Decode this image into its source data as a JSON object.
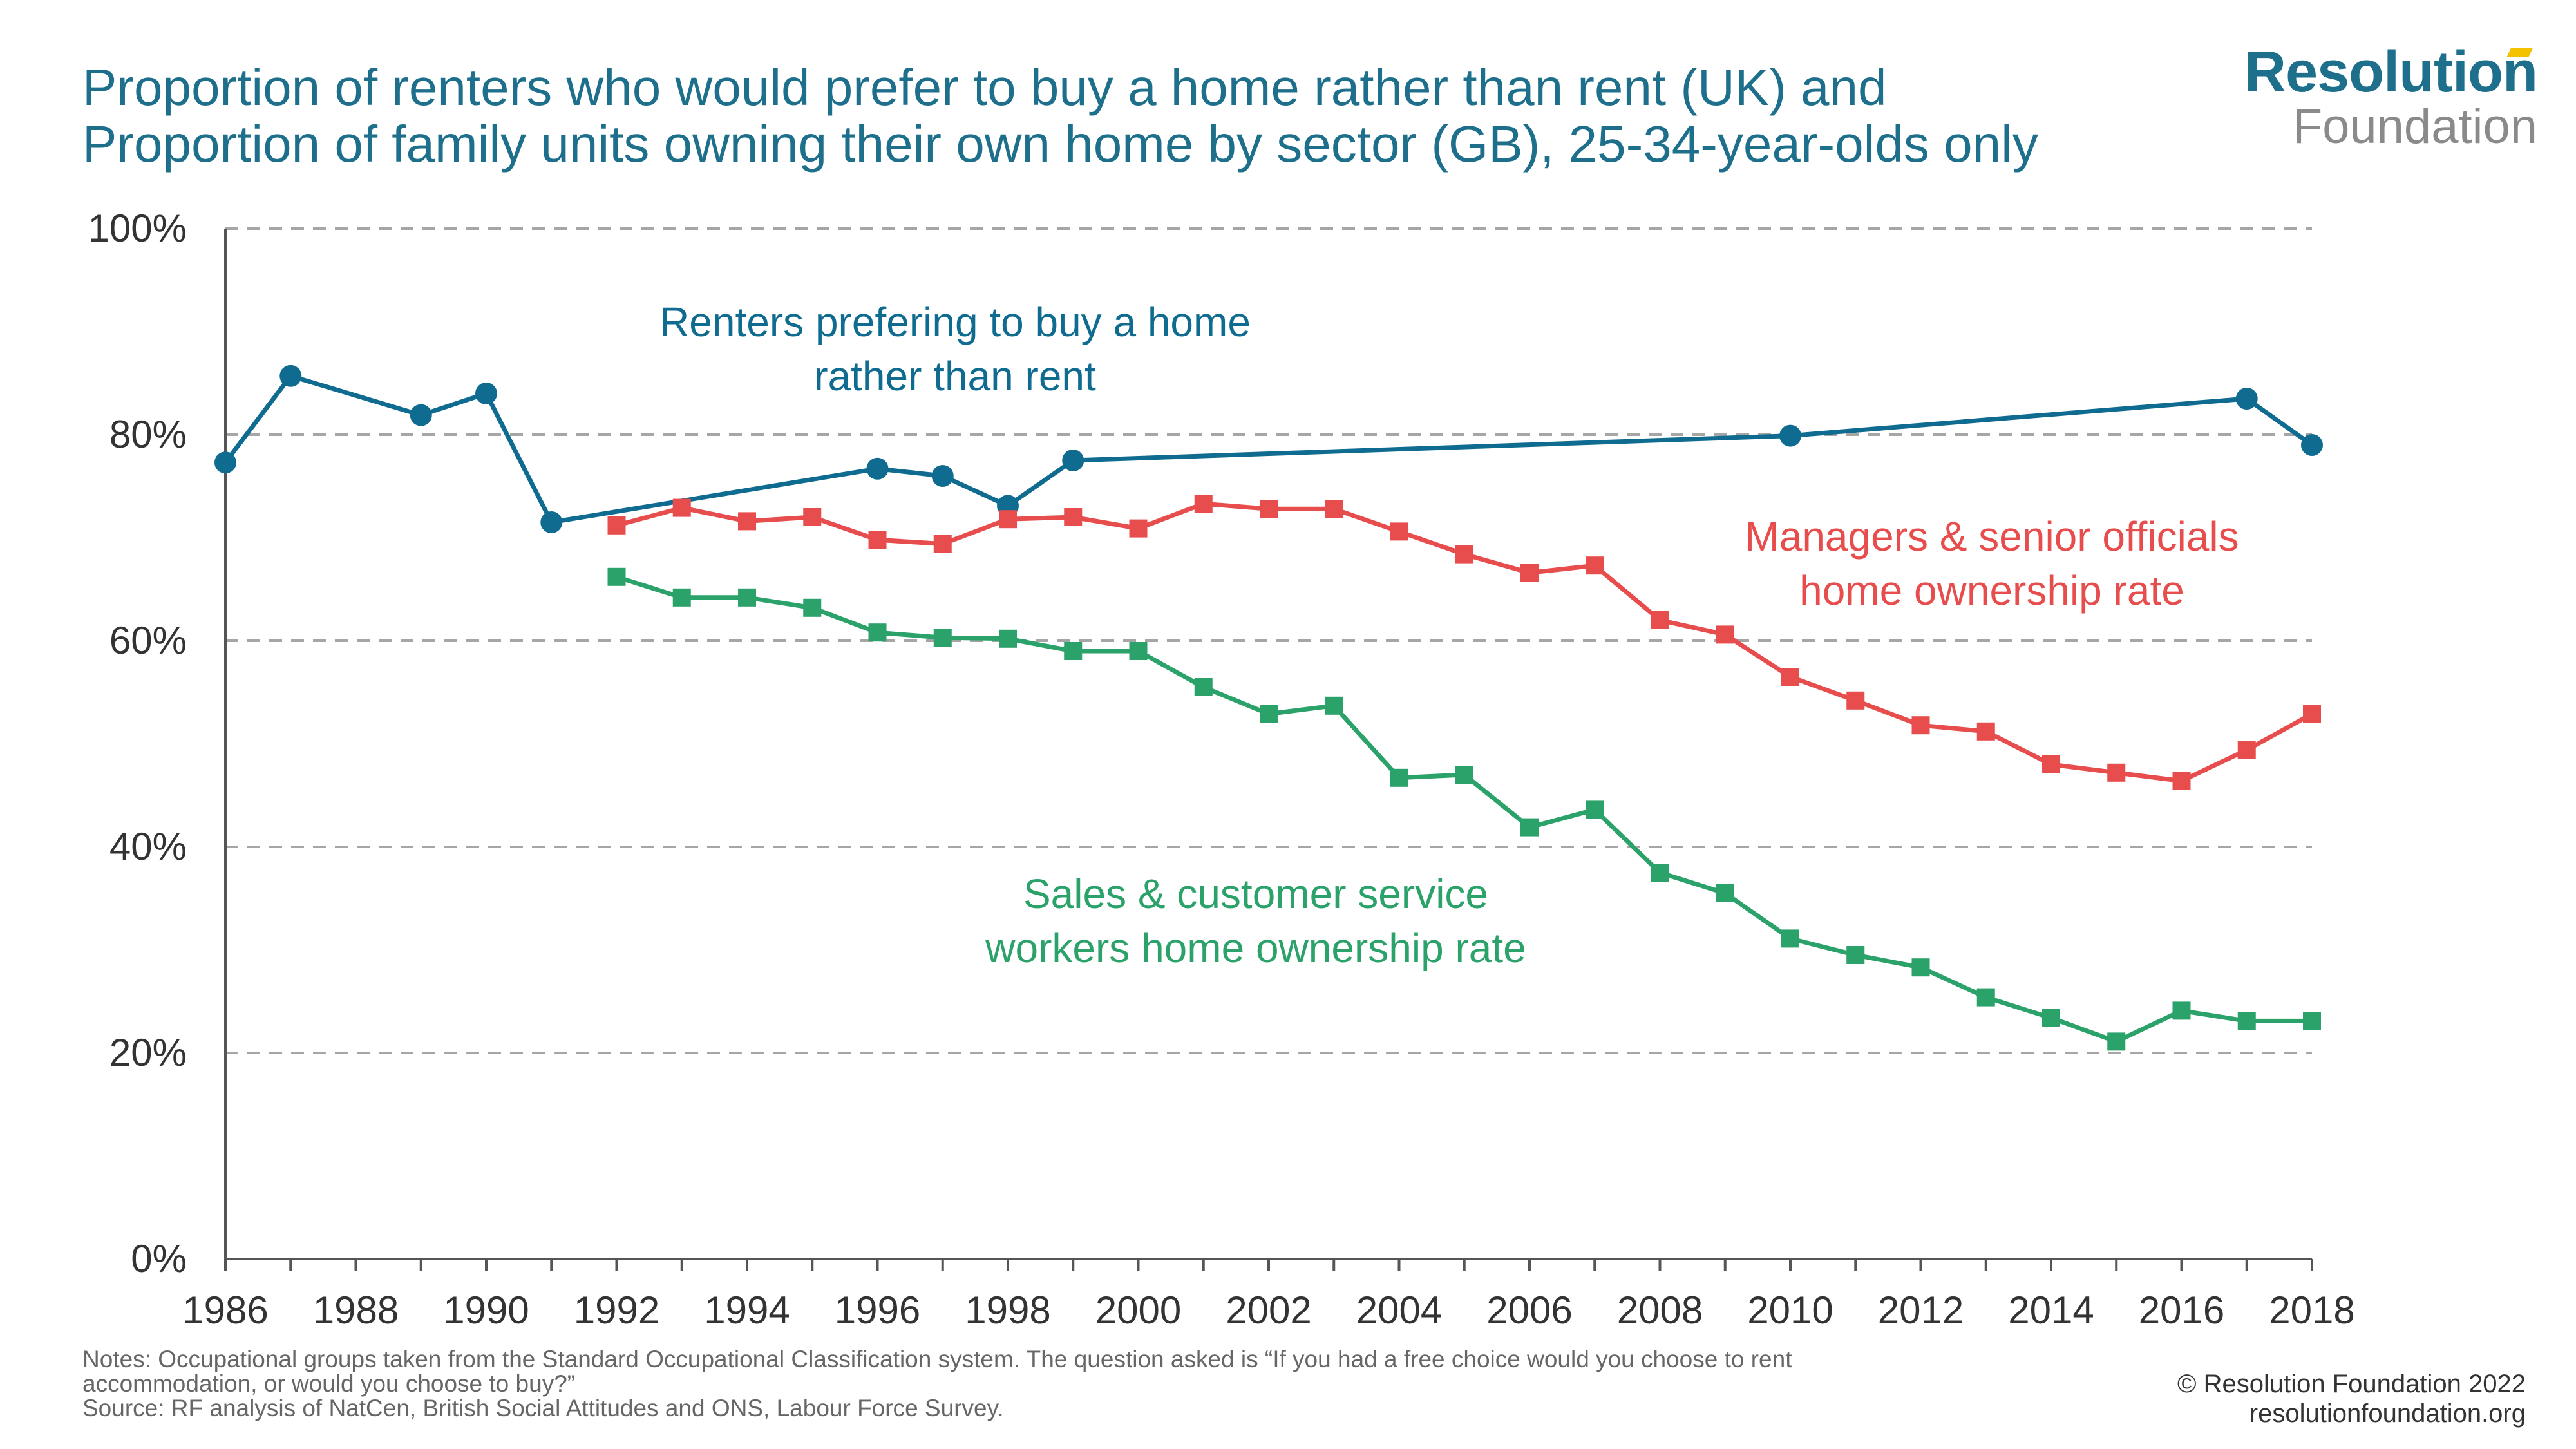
{
  "header": {
    "title_line1": "Proportion of renters who would prefer to buy a home rather than rent (UK) and",
    "title_line2": "Proportion of family units owning their own home by sector (GB), 25-34-year-olds only"
  },
  "logo": {
    "main": "Resolution",
    "sub": "Foundation"
  },
  "footer": {
    "notes_line1": "Notes: Occupational groups taken from the Standard Occupational Classification system. The question asked is “If you had a free choice would you choose to rent",
    "notes_line2": "accommodation, or would you choose to buy?”",
    "source": "Source:  RF analysis of NatCen, British Social Attitudes and ONS, Labour Force Survey.",
    "copyright": "© Resolution Foundation 2022",
    "website": "resolutionfoundation.org"
  },
  "chart_data": {
    "type": "line",
    "title": "",
    "xlabel": "",
    "ylabel": "",
    "xlim": [
      1986,
      2018
    ],
    "ylim": [
      0,
      100
    ],
    "x_ticks": [
      "1986",
      "1988",
      "1990",
      "1992",
      "1994",
      "1996",
      "1998",
      "2000",
      "2002",
      "2004",
      "2006",
      "2008",
      "2010",
      "2012",
      "2014",
      "2016",
      "2018"
    ],
    "y_ticks": [
      {
        "value": 0,
        "label": "0%"
      },
      {
        "value": 20,
        "label": "20%"
      },
      {
        "value": 40,
        "label": "40%"
      },
      {
        "value": 60,
        "label": "60%"
      },
      {
        "value": 80,
        "label": "80%"
      },
      {
        "value": 100,
        "label": "100%"
      }
    ],
    "grid": "horizontal dashed",
    "series": [
      {
        "name": "Renters prefering to buy a home rather than rent",
        "color": "#0f6b8f",
        "marker": "circle",
        "label_lines": [
          "Renters prefering to buy a home",
          "rather than rent"
        ],
        "x": [
          1986,
          1987,
          1989,
          1990,
          1991,
          1996,
          1997,
          1998,
          1999,
          2010,
          2017,
          2018
        ],
        "values": [
          77.3,
          85.7,
          81.9,
          84.0,
          71.5,
          76.7,
          76.0,
          73.1,
          77.5,
          79.9,
          83.5,
          79.0
        ]
      },
      {
        "name": "Managers & senior officials home ownership rate",
        "color": "#e84d4d",
        "marker": "square",
        "label_lines": [
          "Managers & senior officials",
          "home ownership rate"
        ],
        "x": [
          1992,
          1993,
          1994,
          1995,
          1996,
          1997,
          1998,
          1999,
          2000,
          2001,
          2002,
          2003,
          2004,
          2005,
          2006,
          2007,
          2008,
          2009,
          2010,
          2011,
          2012,
          2013,
          2014,
          2015,
          2016,
          2017,
          2018
        ],
        "values": [
          71.2,
          72.9,
          71.6,
          72.0,
          69.8,
          69.4,
          71.8,
          72.0,
          70.9,
          73.3,
          72.8,
          72.8,
          70.6,
          68.4,
          66.6,
          67.3,
          62.0,
          60.6,
          56.5,
          54.2,
          51.8,
          51.2,
          48.0,
          47.2,
          46.4,
          49.4,
          52.9
        ]
      },
      {
        "name": "Sales & customer service workers home ownership rate",
        "color": "#2aa26a",
        "marker": "square",
        "label_lines": [
          "Sales & customer service",
          "workers home ownership rate"
        ],
        "x": [
          1992,
          1993,
          1994,
          1995,
          1996,
          1997,
          1998,
          1999,
          2000,
          2001,
          2002,
          2003,
          2004,
          2005,
          2006,
          2007,
          2008,
          2009,
          2010,
          2011,
          2012,
          2013,
          2014,
          2015,
          2016,
          2017,
          2018
        ],
        "values": [
          66.2,
          64.2,
          64.2,
          63.2,
          60.8,
          60.3,
          60.2,
          59.0,
          59.0,
          55.5,
          52.9,
          53.7,
          46.7,
          47.0,
          41.9,
          43.6,
          37.5,
          35.5,
          31.1,
          29.5,
          28.3,
          25.4,
          23.4,
          21.1,
          24.1,
          23.1,
          23.1
        ]
      }
    ]
  }
}
